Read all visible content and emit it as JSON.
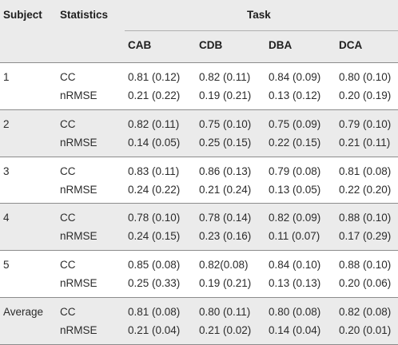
{
  "header": {
    "subject": "Subject",
    "statistics": "Statistics",
    "task": "Task",
    "columns": [
      "CAB",
      "CDB",
      "DBA",
      "DCA"
    ]
  },
  "groups": [
    {
      "subject": "1",
      "rows": [
        {
          "stat": "CC",
          "values": [
            "0.81 (0.12)",
            "0.82 (0.11)",
            "0.84 (0.09)",
            "0.80 (0.10)"
          ]
        },
        {
          "stat": "nRMSE",
          "values": [
            "0.21 (0.22)",
            "0.19 (0.21)",
            "0.13 (0.12)",
            "0.20 (0.19)"
          ]
        }
      ]
    },
    {
      "subject": "2",
      "rows": [
        {
          "stat": "CC",
          "values": [
            "0.82 (0.11)",
            "0.75 (0.10)",
            "0.75 (0.09)",
            "0.79 (0.10)"
          ]
        },
        {
          "stat": "nRMSE",
          "values": [
            "0.14 (0.05)",
            "0.25 (0.15)",
            "0.22 (0.15)",
            "0.21 (0.11)"
          ]
        }
      ]
    },
    {
      "subject": "3",
      "rows": [
        {
          "stat": "CC",
          "values": [
            "0.83 (0.11)",
            "0.86 (0.13)",
            "0.79 (0.08)",
            "0.81 (0.08)"
          ]
        },
        {
          "stat": "nRMSE",
          "values": [
            "0.24 (0.22)",
            "0.21 (0.24)",
            "0.13 (0.05)",
            "0.22 (0.20)"
          ]
        }
      ]
    },
    {
      "subject": "4",
      "rows": [
        {
          "stat": "CC",
          "values": [
            "0.78 (0.10)",
            "0.78 (0.14)",
            "0.82 (0.09)",
            "0.88 (0.10)"
          ]
        },
        {
          "stat": "nRMSE",
          "values": [
            "0.24 (0.15)",
            "0.23 (0.16)",
            "0.11 (0.07)",
            "0.17 (0.29)"
          ]
        }
      ]
    },
    {
      "subject": "5",
      "rows": [
        {
          "stat": "CC",
          "values": [
            "0.85 (0.08)",
            "0.82(0.08)",
            "0.84 (0.10)",
            "0.88 (0.10)"
          ]
        },
        {
          "stat": "nRMSE",
          "values": [
            "0.25 (0.33)",
            "0.19 (0.21)",
            "0.13 (0.13)",
            "0.20 (0.06)"
          ]
        }
      ]
    },
    {
      "subject": "Average",
      "rows": [
        {
          "stat": "CC",
          "values": [
            "0.81 (0.08)",
            "0.80 (0.11)",
            "0.80 (0.08)",
            "0.82 (0.08)"
          ]
        },
        {
          "stat": "nRMSE",
          "values": [
            "0.21 (0.04)",
            "0.21 (0.02)",
            "0.14 (0.04)",
            "0.20 (0.01)"
          ]
        }
      ]
    }
  ]
}
